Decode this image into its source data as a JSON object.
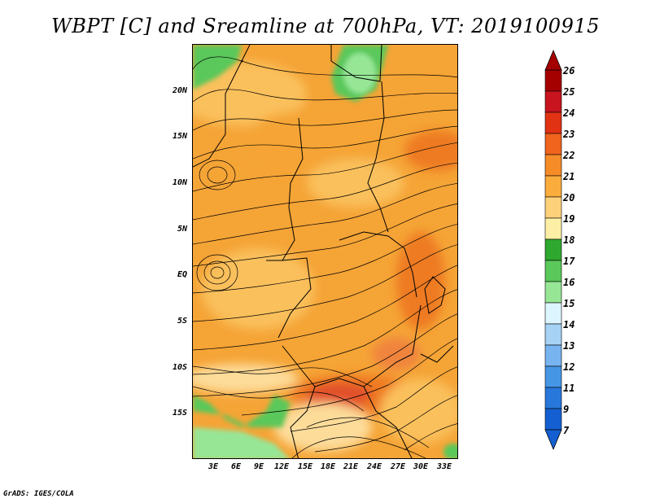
{
  "title": "WBPT [C] and Sreamline at 700hPa, VT: 2019100915",
  "footer": "GrADS: IGES/COLA",
  "map": {
    "lat_labels": [
      "20N",
      "15N",
      "10N",
      "5N",
      "EQ",
      "5S",
      "10S",
      "15S"
    ],
    "lon_labels": [
      "3E",
      "6E",
      "9E",
      "12E",
      "15E",
      "18E",
      "21E",
      "24E",
      "27E",
      "30E",
      "33E"
    ]
  },
  "colorbar": {
    "labels": [
      "26",
      "25",
      "24",
      "23",
      "22",
      "21",
      "20",
      "19",
      "18",
      "17",
      "16",
      "15",
      "14",
      "13",
      "12",
      "11",
      "9",
      "7"
    ],
    "colors": [
      "#a50000",
      "#c8141e",
      "#e13214",
      "#f0641e",
      "#f58c28",
      "#faac3c",
      "#fdd07a",
      "#fdf0a6",
      "#2fa82f",
      "#5ac85a",
      "#96e696",
      "#dcf5ff",
      "#a6d2f5",
      "#78b4f0",
      "#4696e6",
      "#2878dc",
      "#1460d2"
    ],
    "top_color": "#a50000",
    "bottom_color": "#1460d2"
  }
}
